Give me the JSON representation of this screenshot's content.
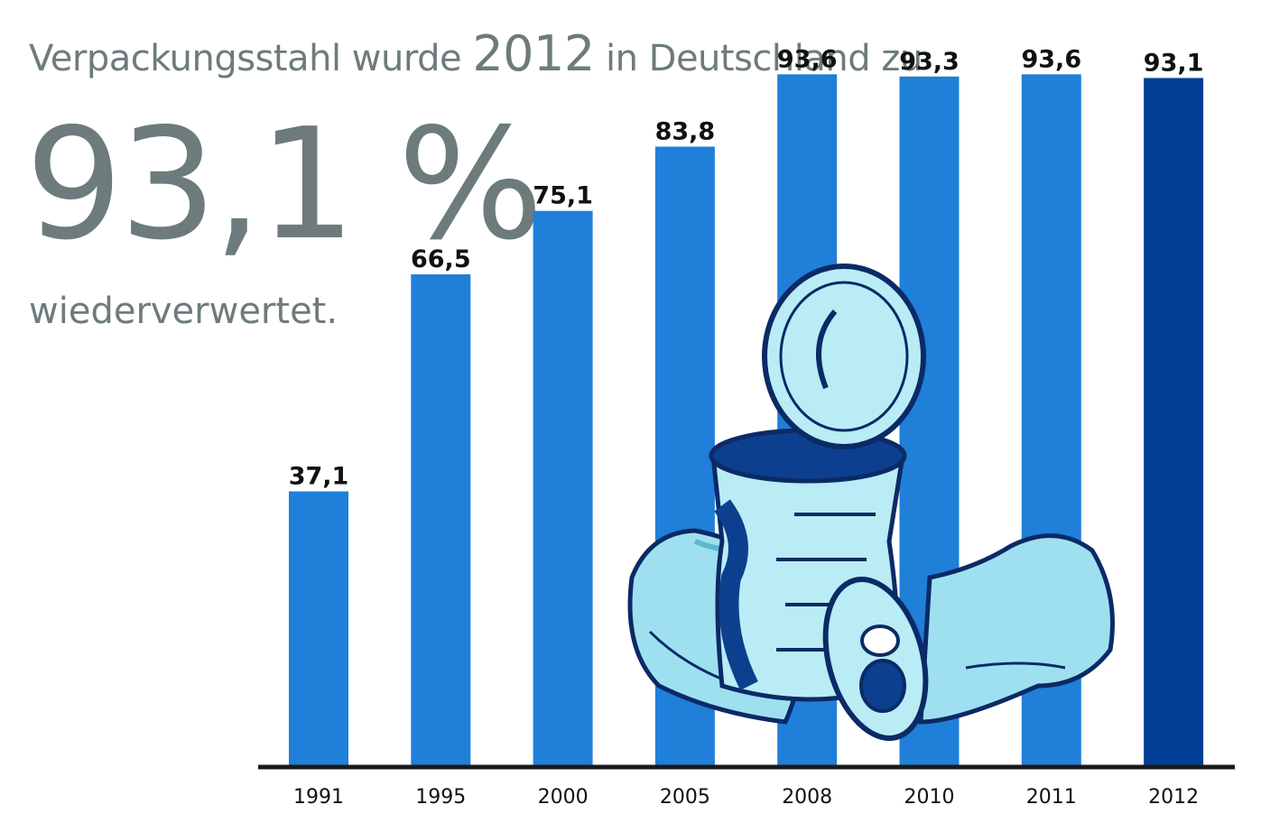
{
  "headline": {
    "before": "Verpackungsstahl wurde ",
    "year": "2012",
    "after": " in Deutschland zu"
  },
  "big_value": "93,1 %",
  "subline": "wiederverwertet.",
  "colors": {
    "bar": "#1f7fd9",
    "bar_highlight": "#003f94",
    "text_gray": "#6d7b7c",
    "axis": "#1a1a1a"
  },
  "chart_data": {
    "type": "bar",
    "categories": [
      "1991",
      "1995",
      "2000",
      "2005",
      "2008",
      "2010",
      "2011",
      "2012"
    ],
    "values": [
      37.1,
      66.5,
      75.1,
      83.8,
      93.6,
      93.3,
      93.6,
      93.1
    ],
    "value_labels": [
      "37,1",
      "66,5",
      "75,1",
      "83,8",
      "93,6",
      "93,3",
      "93,6",
      "93,1"
    ],
    "highlight_category": "2012",
    "ylim": [
      0,
      100
    ],
    "grid": false,
    "legend": "none",
    "xlabel": "",
    "ylabel": ""
  }
}
